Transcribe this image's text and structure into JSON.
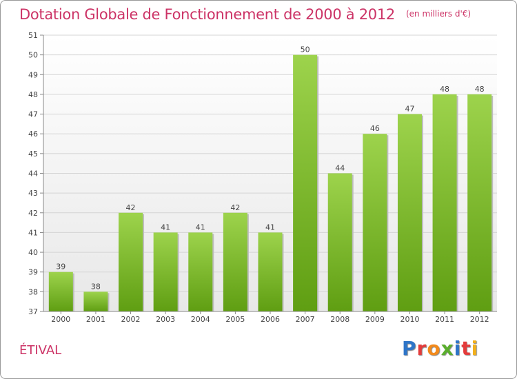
{
  "title": "Dotation Globale de Fonctionnement de 2000 à 2012",
  "unit_note": "(en milliers d'€)",
  "location": "ÉTIVAL",
  "logo": {
    "text": "Proxiti",
    "colors": [
      "#2e75c8",
      "#e43b3b",
      "#f28a1c",
      "#5aae2d",
      "#2e75c8",
      "#e43b3b",
      "#f2b01c"
    ]
  },
  "chart_data": {
    "type": "bar",
    "title": "Dotation Globale de Fonctionnement de 2000 à 2012",
    "xlabel": "",
    "ylabel": "",
    "categories": [
      "2000",
      "2001",
      "2002",
      "2003",
      "2004",
      "2005",
      "2006",
      "2007",
      "2008",
      "2009",
      "2010",
      "2011",
      "2012"
    ],
    "values": [
      39,
      38,
      42,
      41,
      41,
      42,
      41,
      50,
      44,
      46,
      47,
      48,
      48
    ],
    "ylim": [
      37,
      51
    ],
    "yticks": [
      37,
      38,
      39,
      40,
      41,
      42,
      43,
      44,
      45,
      46,
      47,
      48,
      49,
      50,
      51
    ],
    "grid": true,
    "bar_color": "#7cbf2e"
  }
}
